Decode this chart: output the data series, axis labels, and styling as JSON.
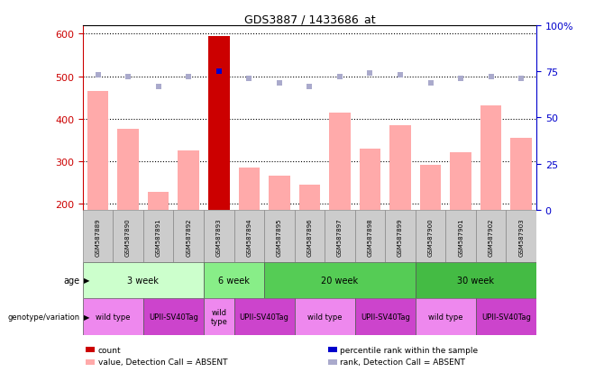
{
  "title": "GDS3887 / 1433686_at",
  "samples": [
    "GSM587889",
    "GSM587890",
    "GSM587891",
    "GSM587892",
    "GSM587893",
    "GSM587894",
    "GSM587895",
    "GSM587896",
    "GSM587897",
    "GSM587898",
    "GSM587899",
    "GSM587900",
    "GSM587901",
    "GSM587902",
    "GSM587903"
  ],
  "bar_values": [
    465,
    375,
    228,
    325,
    595,
    285,
    265,
    245,
    415,
    330,
    385,
    290,
    320,
    430,
    355
  ],
  "rank_values": [
    73,
    72,
    67,
    72,
    75,
    71,
    69,
    67,
    72,
    74,
    73,
    69,
    71,
    72,
    71
  ],
  "highlight_bar": 4,
  "highlight_rank": 4,
  "ylim_left": [
    185,
    620
  ],
  "ylim_right": [
    0,
    100
  ],
  "yticks_left": [
    200,
    300,
    400,
    500,
    600
  ],
  "yticks_right": [
    0,
    25,
    50,
    75,
    100
  ],
  "age_groups": [
    {
      "label": "3 week",
      "start": 0,
      "end": 4,
      "color": "#ccffcc"
    },
    {
      "label": "6 week",
      "start": 4,
      "end": 6,
      "color": "#88ee88"
    },
    {
      "label": "20 week",
      "start": 6,
      "end": 11,
      "color": "#55cc55"
    },
    {
      "label": "30 week",
      "start": 11,
      "end": 15,
      "color": "#44bb44"
    }
  ],
  "genotype_groups": [
    {
      "label": "wild type",
      "start": 0,
      "end": 2,
      "color": "#ee88ee"
    },
    {
      "label": "UPII-SV40Tag",
      "start": 2,
      "end": 4,
      "color": "#cc44cc"
    },
    {
      "label": "wild\ntype",
      "start": 4,
      "end": 5,
      "color": "#ee88ee"
    },
    {
      "label": "UPII-SV40Tag",
      "start": 5,
      "end": 7,
      "color": "#cc44cc"
    },
    {
      "label": "wild type",
      "start": 7,
      "end": 9,
      "color": "#ee88ee"
    },
    {
      "label": "UPII-SV40Tag",
      "start": 9,
      "end": 11,
      "color": "#cc44cc"
    },
    {
      "label": "wild type",
      "start": 11,
      "end": 13,
      "color": "#ee88ee"
    },
    {
      "label": "UPII-SV40Tag",
      "start": 13,
      "end": 15,
      "color": "#cc44cc"
    }
  ],
  "bar_color_normal": "#ffaaaa",
  "bar_color_highlight": "#cc0000",
  "rank_color_normal": "#aaaacc",
  "rank_color_highlight": "#0000cc",
  "rank_marker_size": 5,
  "background_color": "#ffffff",
  "left_axis_color": "#cc0000",
  "right_axis_color": "#0000cc",
  "legend_items": [
    {
      "label": "count",
      "color": "#cc0000"
    },
    {
      "label": "percentile rank within the sample",
      "color": "#0000cc"
    },
    {
      "label": "value, Detection Call = ABSENT",
      "color": "#ffaaaa"
    },
    {
      "label": "rank, Detection Call = ABSENT",
      "color": "#aaaacc"
    }
  ]
}
